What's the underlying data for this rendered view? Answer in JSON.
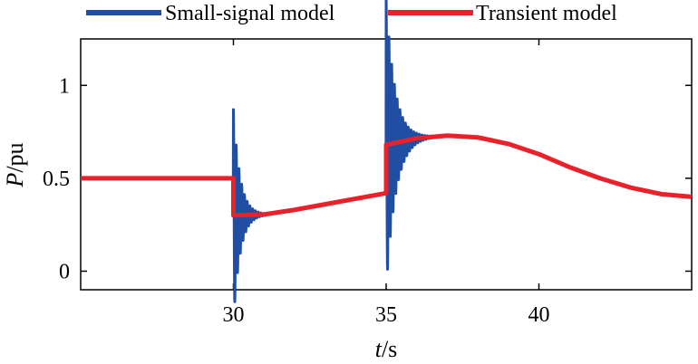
{
  "chart_data": {
    "type": "line",
    "xlabel_italic": "t",
    "xlabel_unit": "/s",
    "ylabel_italic": "P",
    "ylabel_unit": "/pu",
    "xlim": [
      25,
      45
    ],
    "ylim": [
      -0.1,
      1.25
    ],
    "xticks": [
      30,
      35,
      40
    ],
    "yticks": [
      0,
      0.5,
      1
    ],
    "x_tick_labels": [
      "30",
      "35",
      "40"
    ],
    "y_tick_labels": [
      "0",
      "0.5",
      "1"
    ],
    "grid": false,
    "legend_position": "top-outside",
    "series": [
      {
        "name": "Small-signal model",
        "color": "#1f4ea3",
        "oscillations": [
          {
            "start": 30.0,
            "amplitude": 0.57,
            "decay": 0.22,
            "period": 0.09
          },
          {
            "start": 35.0,
            "amplitude": 0.78,
            "decay": 0.3,
            "period": 0.09
          }
        ],
        "points": [
          [
            25,
            0.5
          ],
          [
            30,
            0.5
          ],
          [
            30.0,
            0.3
          ],
          [
            31,
            0.305
          ],
          [
            32,
            0.33
          ],
          [
            33,
            0.36
          ],
          [
            34,
            0.39
          ],
          [
            35,
            0.42
          ],
          [
            35.0,
            0.68
          ],
          [
            36,
            0.715
          ],
          [
            37,
            0.73
          ],
          [
            38,
            0.72
          ],
          [
            39,
            0.685
          ],
          [
            40,
            0.63
          ],
          [
            41,
            0.56
          ],
          [
            42,
            0.5
          ],
          [
            43,
            0.45
          ],
          [
            44,
            0.415
          ],
          [
            45,
            0.4
          ]
        ]
      },
      {
        "name": "Transient model",
        "color": "#e8212a",
        "points": [
          [
            25,
            0.5
          ],
          [
            30,
            0.5
          ],
          [
            30.0,
            0.3
          ],
          [
            31,
            0.305
          ],
          [
            32,
            0.33
          ],
          [
            33,
            0.36
          ],
          [
            34,
            0.39
          ],
          [
            35,
            0.42
          ],
          [
            35.0,
            0.68
          ],
          [
            36,
            0.715
          ],
          [
            37,
            0.73
          ],
          [
            38,
            0.72
          ],
          [
            39,
            0.685
          ],
          [
            40,
            0.63
          ],
          [
            41,
            0.56
          ],
          [
            42,
            0.5
          ],
          [
            43,
            0.45
          ],
          [
            44,
            0.415
          ],
          [
            45,
            0.4
          ]
        ]
      }
    ]
  }
}
